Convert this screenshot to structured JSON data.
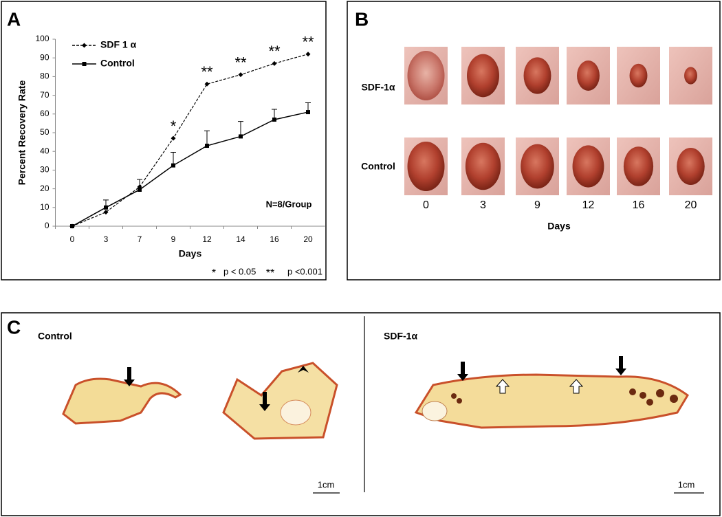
{
  "panel_labels": [
    "A",
    "B",
    "C"
  ],
  "chart_data": {
    "type": "line",
    "xlabel": "Days",
    "ylabel": "Percent Recovery Rate",
    "categories": [
      "0",
      "3",
      "7",
      "9",
      "12",
      "14",
      "16",
      "20"
    ],
    "ylim": [
      0,
      100
    ],
    "yticks": [
      0,
      10,
      20,
      30,
      40,
      50,
      60,
      70,
      80,
      90,
      100
    ],
    "legend": "upper left",
    "series": [
      {
        "name": "SDF 1 α",
        "color": "#000000",
        "line_style": "dashed",
        "marker": "diamond",
        "values": [
          0,
          7.5,
          21,
          47,
          76,
          81,
          87,
          92
        ]
      },
      {
        "name": "Control",
        "color": "#000000",
        "line_style": "solid",
        "marker": "square",
        "values": [
          0,
          10,
          19.5,
          32.5,
          43,
          48,
          57,
          61
        ],
        "errors": [
          0,
          4,
          5.5,
          7,
          8,
          8,
          5.5,
          5
        ]
      }
    ],
    "significance": [
      null,
      null,
      null,
      "*",
      "**",
      "**",
      "**",
      "**"
    ],
    "annotation": "N=8/Group",
    "significance_legend": [
      {
        "symbol": "*",
        "label": "p < 0.05"
      },
      {
        "symbol": "**",
        "label": "p <0.001"
      }
    ]
  },
  "panel_b": {
    "rows": [
      "SDF-1α",
      "Control"
    ],
    "days": [
      "0",
      "3",
      "9",
      "12",
      "16",
      "20"
    ],
    "xlabel": "Days"
  },
  "panel_c": {
    "left_label": "Control",
    "right_label": "SDF-1α",
    "scale_labels": [
      "1cm",
      "1cm"
    ]
  }
}
